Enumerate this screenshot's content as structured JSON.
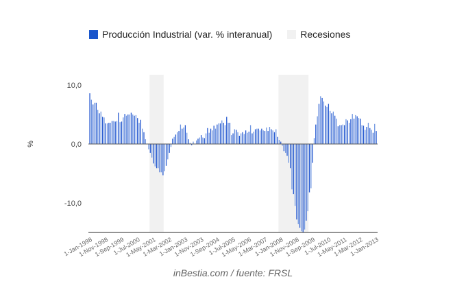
{
  "chart_data": {
    "type": "bar",
    "title": "",
    "ylabel": "%",
    "xlabel": "",
    "ylim": [
      -15,
      15
    ],
    "yticks": [
      {
        "value": 10,
        "label": "10,0"
      },
      {
        "value": 0,
        "label": "0,0"
      },
      {
        "value": -10,
        "label": "-10,0"
      }
    ],
    "start_month": "1998-01",
    "xtick_labels": [
      "1-Jan-1998",
      "1-Nov-1998",
      "1-Sep-1999",
      "1-Jul-2000",
      "1-May-2001",
      "1-Mar-2002",
      "1-Jan-2003",
      "1-Nov-2003",
      "1-Sep-2004",
      "1-Jul-2005",
      "1-May-2006",
      "1-Mar-2007",
      "1-Jan-2008",
      "1-Nov-2008",
      "1-Sep-2009",
      "1-Jul-2010",
      "1-May-2011",
      "1-Mar-2012",
      "1-Jan-2013"
    ],
    "xtick_every_months": 10,
    "legend": [
      {
        "name": "Producción Industrial (var. % interanual)",
        "color": "#1a56cc"
      },
      {
        "name": "Recesiones",
        "color": "#f1f1f1"
      }
    ],
    "legend_position": "top",
    "recessions": [
      {
        "start": "2001-03",
        "end": "2001-11"
      },
      {
        "start": "2007-12",
        "end": "2009-06"
      }
    ],
    "series": [
      {
        "name": "Producción Industrial (var. % interanual)",
        "values": [
          8.6,
          7.5,
          6.7,
          7.0,
          7.0,
          5.8,
          5.2,
          5.5,
          4.6,
          4.5,
          3.5,
          3.5,
          3.6,
          3.6,
          3.9,
          3.9,
          3.8,
          3.9,
          5.3,
          3.7,
          3.8,
          4.5,
          5.1,
          4.8,
          5.0,
          5.0,
          5.3,
          5.0,
          4.8,
          4.9,
          4.4,
          3.6,
          4.1,
          2.6,
          2.0,
          0.8,
          0.0,
          -0.9,
          -1.5,
          -2.3,
          -3.3,
          -3.8,
          -4.1,
          -4.1,
          -4.8,
          -4.8,
          -5.3,
          -4.6,
          -3.7,
          -2.6,
          -1.5,
          -0.5,
          0.9,
          1.2,
          1.6,
          2.0,
          2.2,
          3.3,
          2.6,
          2.8,
          3.2,
          1.9,
          0.8,
          0.2,
          -0.2,
          0.4,
          0.0,
          0.6,
          0.9,
          1.1,
          1.5,
          1.1,
          1.0,
          1.8,
          2.7,
          1.9,
          2.6,
          2.3,
          3.1,
          2.6,
          3.3,
          3.5,
          3.5,
          4.0,
          3.6,
          3.2,
          4.6,
          3.6,
          3.6,
          1.5,
          1.8,
          2.5,
          2.4,
          2.0,
          1.4,
          1.8,
          2.0,
          1.7,
          2.3,
          1.9,
          2.1,
          3.2,
          1.8,
          2.1,
          2.5,
          2.6,
          2.6,
          2.3,
          2.6,
          2.3,
          2.2,
          2.8,
          2.2,
          2.9,
          2.5,
          2.3,
          2.0,
          2.5,
          1.2,
          0.7,
          0.4,
          -0.3,
          -1.2,
          -1.5,
          -2.0,
          -3.2,
          -4.1,
          -7.7,
          -8.5,
          -10.5,
          -12.8,
          -13.6,
          -14.2,
          -14.8,
          -15.0,
          -14.5,
          -13.0,
          -11.4,
          -8.2,
          -7.5,
          -3.2,
          1.0,
          3.3,
          4.7,
          6.8,
          8.1,
          7.8,
          7.2,
          6.5,
          6.3,
          6.8,
          5.6,
          5.2,
          5.5,
          4.8,
          4.3,
          3.0,
          3.2,
          3.2,
          3.3,
          3.2,
          4.2,
          4.0,
          3.6,
          4.2,
          5.1,
          4.3,
          4.9,
          4.7,
          4.4,
          4.3,
          3.2,
          3.1,
          2.4,
          2.9,
          3.6,
          2.7,
          2.4,
          1.9,
          3.4,
          2.2
        ]
      }
    ]
  },
  "footer": "inBestia.com / fuente: FRSL"
}
